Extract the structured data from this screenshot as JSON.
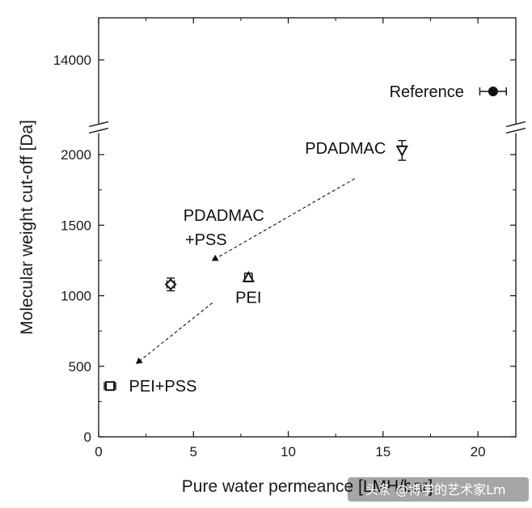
{
  "chart_data": {
    "type": "scatter",
    "xlabel": "Pure water permeance [LMH/bar]",
    "ylabel": "Molecular weight cut-off [Da]",
    "xlim": [
      0,
      22
    ],
    "ylim_lower": [
      0,
      2150
    ],
    "ylim_upper": [
      12800,
      14800
    ],
    "axis_break": "between 2150 and 12800 on y-axis",
    "xticks": [
      "0",
      "5",
      "10",
      "15",
      "20"
    ],
    "yticks": [
      "0",
      "500",
      "1000",
      "1500",
      "2000",
      "14000"
    ],
    "points": [
      {
        "label": "Reference",
        "x": 20.8,
        "y": 13400,
        "xerr": 0.7,
        "yerr": 0,
        "marker": "filled-circle"
      },
      {
        "label": "PDADMAC",
        "x": 16.0,
        "y": 2030,
        "xerr": 0,
        "yerr": 70,
        "marker": "open-triangle-down"
      },
      {
        "label": "PEI",
        "x": 7.9,
        "y": 1130,
        "xerr": 0.2,
        "yerr": 30,
        "marker": "open-triangle-up"
      },
      {
        "label": "PDADMAC\n+PSS",
        "x": 3.8,
        "y": 1080,
        "xerr": 0.2,
        "yerr": 45,
        "marker": "open-diamond"
      },
      {
        "label": "PEI+PSS",
        "x": 0.6,
        "y": 360,
        "xerr": 0.3,
        "yerr": 0,
        "marker": "open-square"
      }
    ],
    "annotations": [
      {
        "text": "Reference",
        "near": "Reference"
      },
      {
        "text": "PDADMAC",
        "near": "PDADMAC"
      },
      {
        "text": "PDADMAC",
        "near": "PDADMAC+PSS",
        "line": 1
      },
      {
        "text": "+PSS",
        "near": "PDADMAC+PSS",
        "line": 2
      },
      {
        "text": "PEI",
        "near": "PEI"
      },
      {
        "text": "PEI+PSS",
        "near": "PEI+PSS"
      }
    ],
    "arrows": [
      {
        "from": [
          13.5,
          1830
        ],
        "to": [
          6.0,
          1250
        ],
        "style": "dashed"
      },
      {
        "from": [
          6.0,
          950
        ],
        "to": [
          2.0,
          520
        ],
        "style": "dashed"
      }
    ],
    "grid": false,
    "legend": "none"
  },
  "watermark": "头条 @博学的艺术家Lm"
}
